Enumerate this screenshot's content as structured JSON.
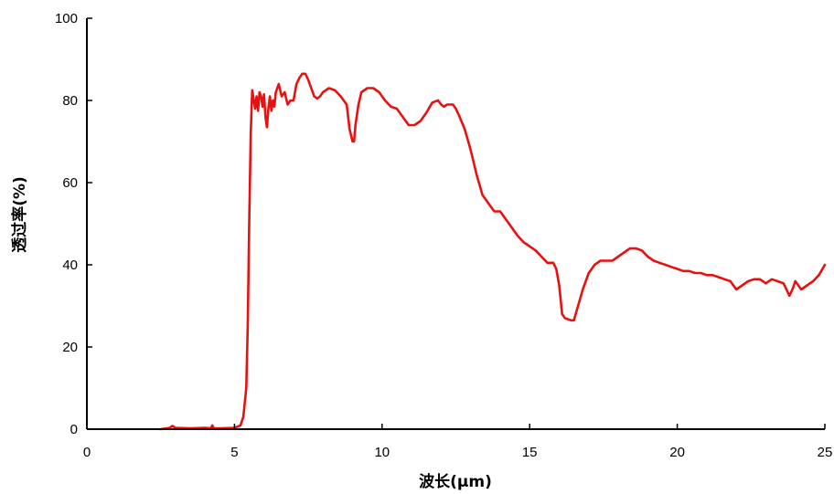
{
  "chart_data": {
    "type": "line",
    "xlabel": "波长(μm)",
    "ylabel": "透过率(%)",
    "xlim": [
      0,
      25
    ],
    "ylim": [
      0,
      100
    ],
    "xticks": [
      0,
      5,
      10,
      15,
      20,
      25
    ],
    "yticks": [
      0,
      20,
      40,
      60,
      80,
      100
    ],
    "grid": false,
    "legend": "none",
    "series": [
      {
        "color": "#e8110f",
        "x": [
          2.5,
          2.8,
          2.9,
          3.0,
          3.5,
          4.0,
          4.2,
          4.25,
          4.3,
          4.5,
          5.0,
          5.2,
          5.3,
          5.4,
          5.45,
          5.5,
          5.55,
          5.6,
          5.7,
          5.75,
          5.8,
          5.85,
          5.9,
          5.95,
          6.0,
          6.05,
          6.1,
          6.15,
          6.2,
          6.25,
          6.3,
          6.35,
          6.4,
          6.5,
          6.6,
          6.7,
          6.8,
          6.9,
          7.0,
          7.1,
          7.2,
          7.3,
          7.4,
          7.5,
          7.6,
          7.7,
          7.8,
          7.9,
          8.0,
          8.2,
          8.4,
          8.6,
          8.8,
          8.9,
          9.0,
          9.05,
          9.1,
          9.2,
          9.3,
          9.5,
          9.7,
          9.9,
          10.1,
          10.3,
          10.5,
          10.7,
          10.9,
          11.1,
          11.3,
          11.5,
          11.7,
          11.9,
          12.0,
          12.1,
          12.2,
          12.3,
          12.4,
          12.5,
          12.6,
          12.8,
          13.0,
          13.2,
          13.4,
          13.5,
          13.6,
          13.8,
          14.0,
          14.2,
          14.4,
          14.6,
          14.8,
          15.0,
          15.2,
          15.4,
          15.6,
          15.8,
          15.9,
          16.0,
          16.1,
          16.2,
          16.4,
          16.5,
          16.6,
          16.8,
          17.0,
          17.2,
          17.4,
          17.6,
          17.8,
          18.0,
          18.2,
          18.4,
          18.6,
          18.8,
          19.0,
          19.2,
          19.4,
          19.6,
          19.8,
          20.0,
          20.2,
          20.4,
          20.6,
          20.8,
          21.0,
          21.2,
          21.4,
          21.6,
          21.8,
          22.0,
          22.2,
          22.4,
          22.6,
          22.8,
          23.0,
          23.2,
          23.4,
          23.6,
          23.7,
          23.8,
          23.9,
          24.0,
          24.2,
          24.4,
          24.6,
          24.8,
          25.0
        ],
        "y": [
          0,
          0.3,
          0.8,
          0.3,
          0.2,
          0.3,
          0.2,
          0.9,
          0.2,
          0.2,
          0.3,
          0.9,
          3,
          10,
          25,
          50,
          72,
          82.5,
          78,
          81,
          77.5,
          82,
          81,
          78.5,
          81.5,
          76,
          73.5,
          78,
          81,
          77.5,
          80,
          78.5,
          82,
          84,
          81,
          82,
          79,
          80,
          80,
          84,
          85.5,
          86.5,
          86.5,
          85,
          83,
          81,
          80.5,
          81,
          82,
          83,
          82.5,
          81,
          79,
          73,
          70,
          70,
          74,
          79,
          82,
          83,
          83,
          82,
          80,
          78.5,
          78,
          76,
          74,
          74,
          75,
          77,
          79.5,
          80,
          79,
          78.5,
          79,
          79,
          79,
          78,
          76.5,
          73,
          68,
          62,
          57,
          56,
          55,
          53,
          53,
          51,
          49,
          47,
          45.5,
          44.5,
          43.5,
          42,
          40.5,
          40.5,
          39,
          35,
          28,
          27,
          26.5,
          26.5,
          29,
          34,
          38,
          40,
          41,
          41,
          41,
          42,
          43,
          44,
          44,
          43.5,
          42,
          41,
          40.5,
          40,
          39.5,
          39,
          38.5,
          38.5,
          38,
          38,
          37.5,
          37.5,
          37,
          36.5,
          36,
          34,
          35,
          36,
          36.5,
          36.5,
          35.5,
          36.5,
          36,
          35.5,
          34,
          32.5,
          34,
          36,
          34,
          35,
          36,
          37.5,
          40
        ]
      }
    ]
  }
}
